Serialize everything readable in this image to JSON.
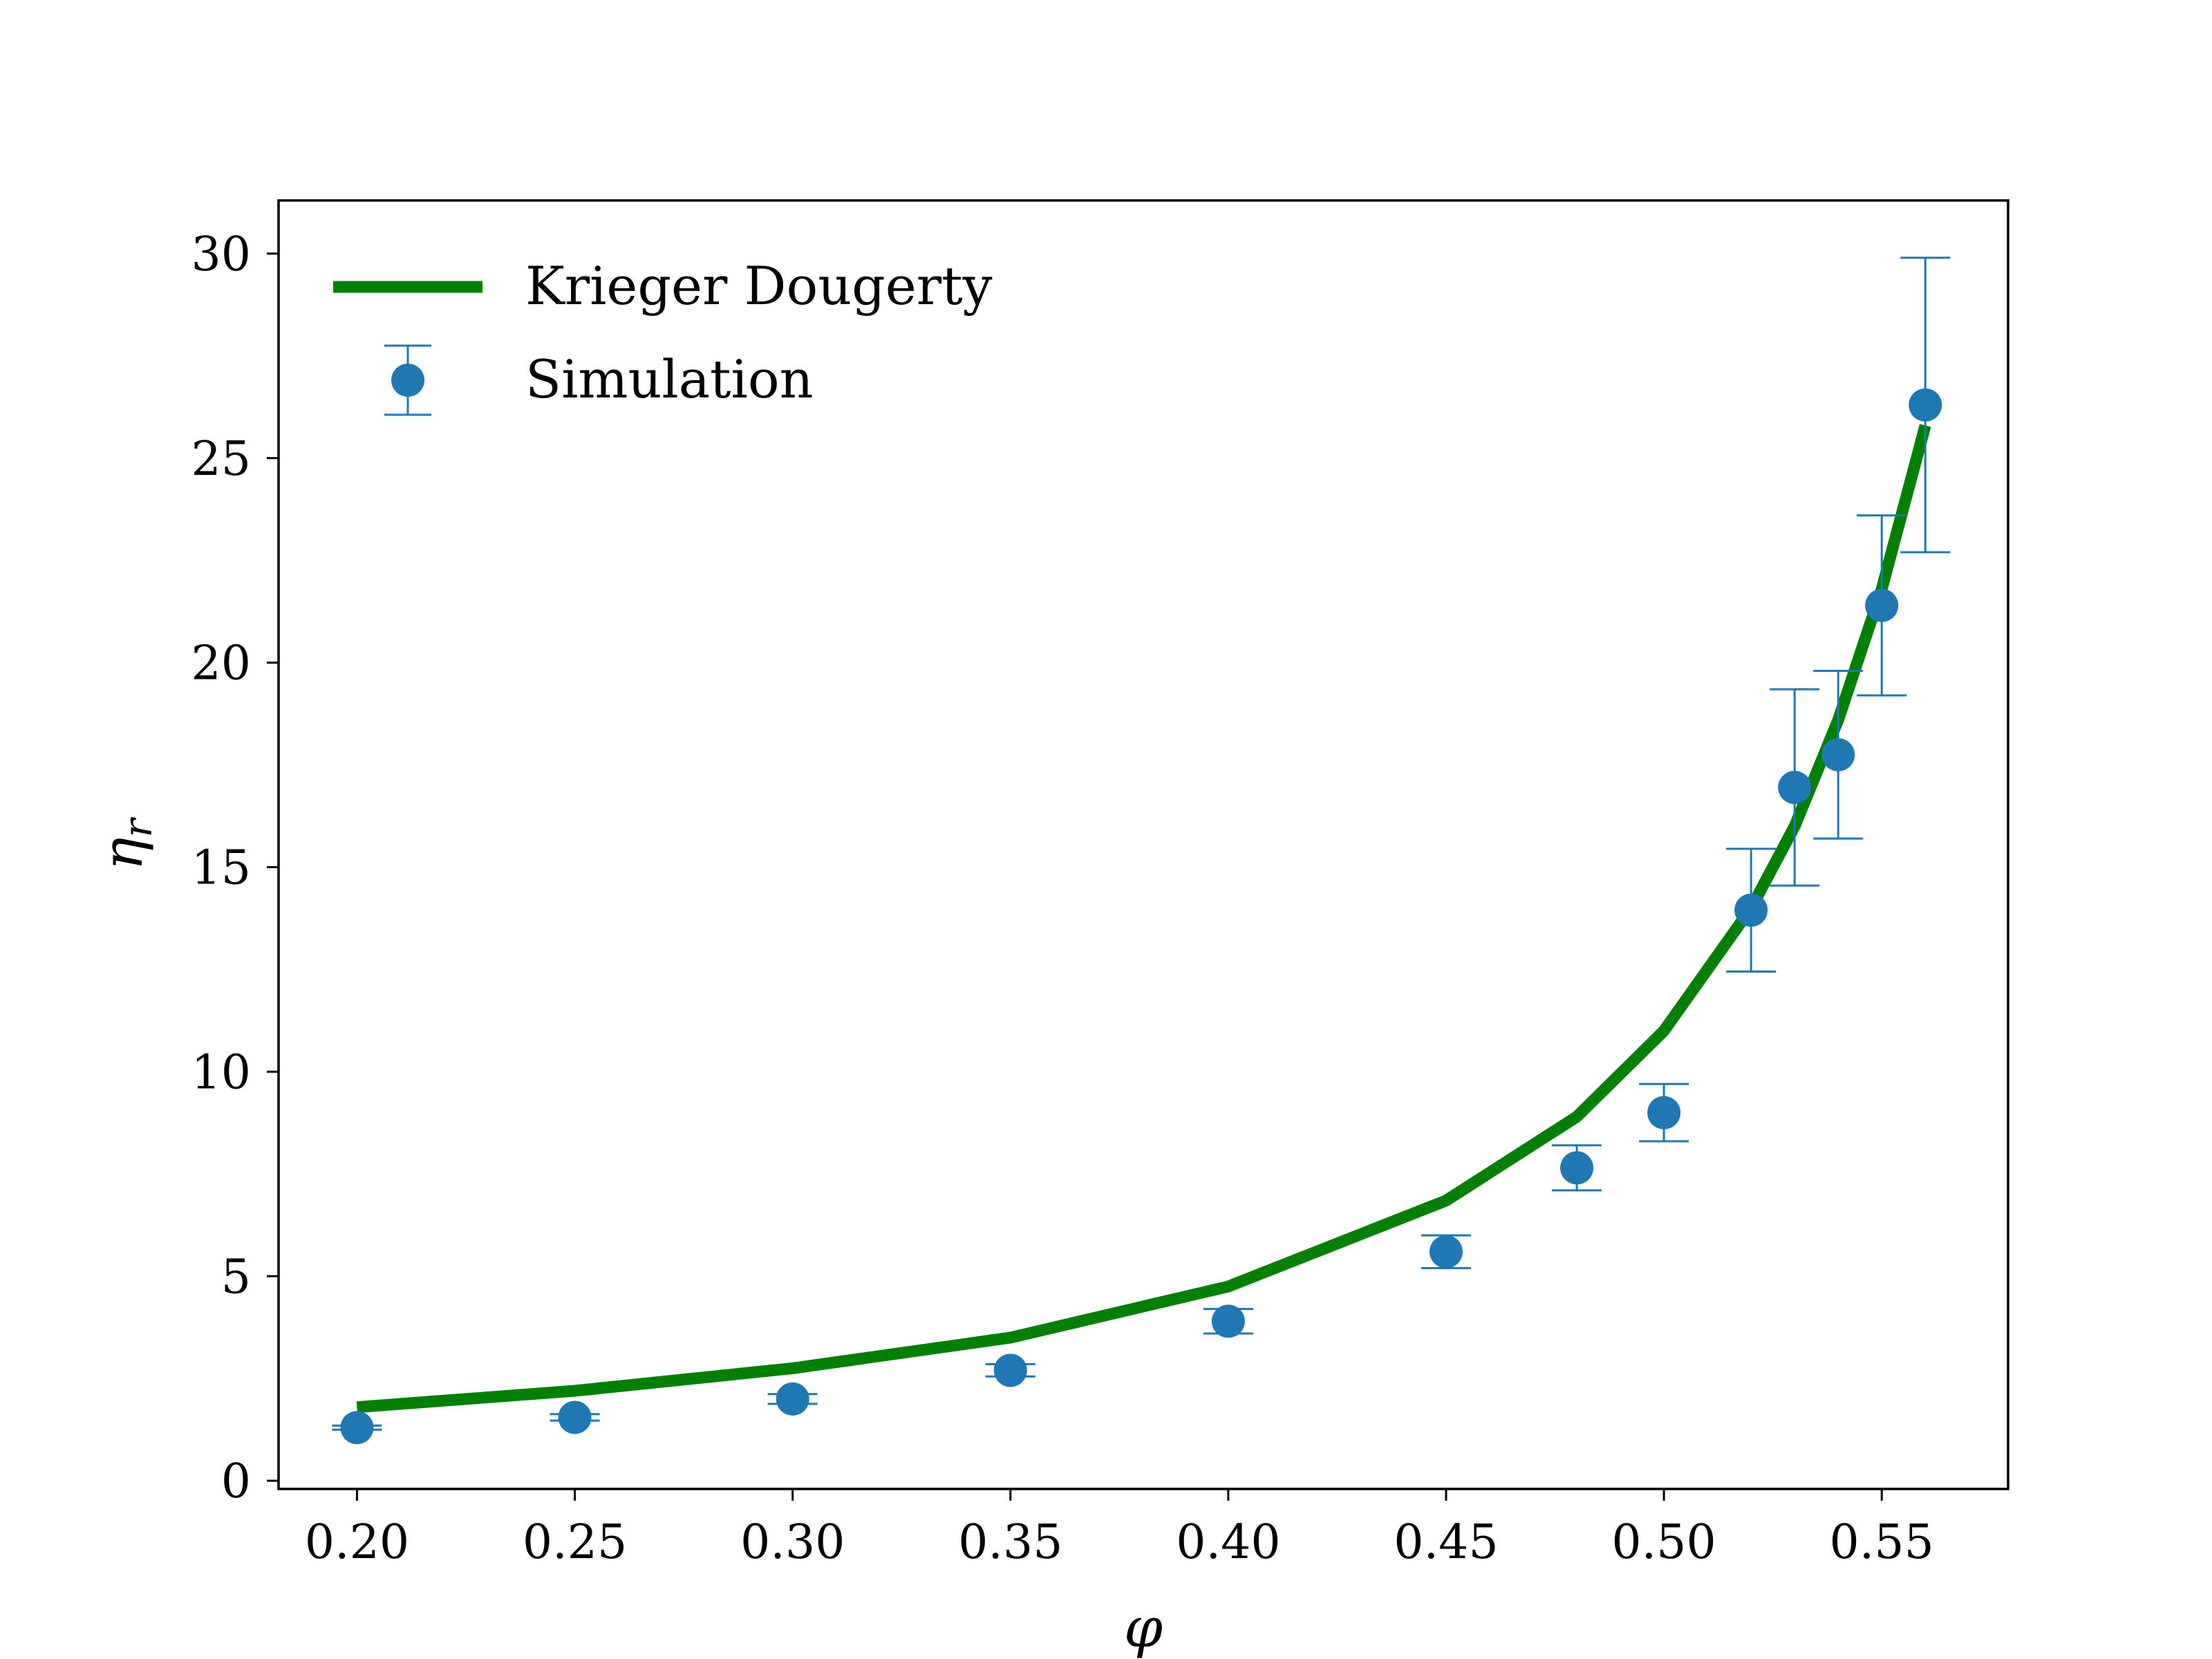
{
  "chart_data": {
    "type": "line",
    "xlabel": "φ",
    "ylabel": "η",
    "ylabel_sub": "r",
    "xlim": [
      0.182,
      0.579
    ],
    "ylim": [
      -0.2,
      31.3
    ],
    "x_ticks": [
      "0.20",
      "0.25",
      "0.30",
      "0.35",
      "0.40",
      "0.45",
      "0.50",
      "0.55"
    ],
    "y_ticks": [
      "0",
      "5",
      "10",
      "15",
      "20",
      "25",
      "30"
    ],
    "legend_position": "top-left",
    "series": [
      {
        "name": "Krieger Dougerty",
        "kind": "line",
        "color": "#008000",
        "x": [
          0.2,
          0.25,
          0.3,
          0.35,
          0.4,
          0.45,
          0.48,
          0.5,
          0.52,
          0.53,
          0.54,
          0.55,
          0.56
        ],
        "y": [
          1.8,
          2.2,
          2.75,
          3.5,
          4.75,
          6.85,
          8.9,
          11.0,
          14.0,
          16.0,
          18.6,
          21.8,
          25.8
        ]
      },
      {
        "name": "Simulation",
        "kind": "errorbar",
        "color": "#1f77b4",
        "x": [
          0.2,
          0.25,
          0.3,
          0.35,
          0.4,
          0.45,
          0.48,
          0.5,
          0.52,
          0.53,
          0.54,
          0.55,
          0.56
        ],
        "y": [
          1.3,
          1.55,
          2.0,
          2.7,
          3.9,
          5.6,
          7.65,
          9.0,
          13.95,
          16.95,
          17.75,
          21.4,
          26.3
        ],
        "err": [
          0.05,
          0.08,
          0.12,
          0.15,
          0.3,
          0.4,
          0.55,
          0.7,
          1.5,
          2.4,
          2.05,
          2.2,
          3.6
        ]
      }
    ]
  }
}
